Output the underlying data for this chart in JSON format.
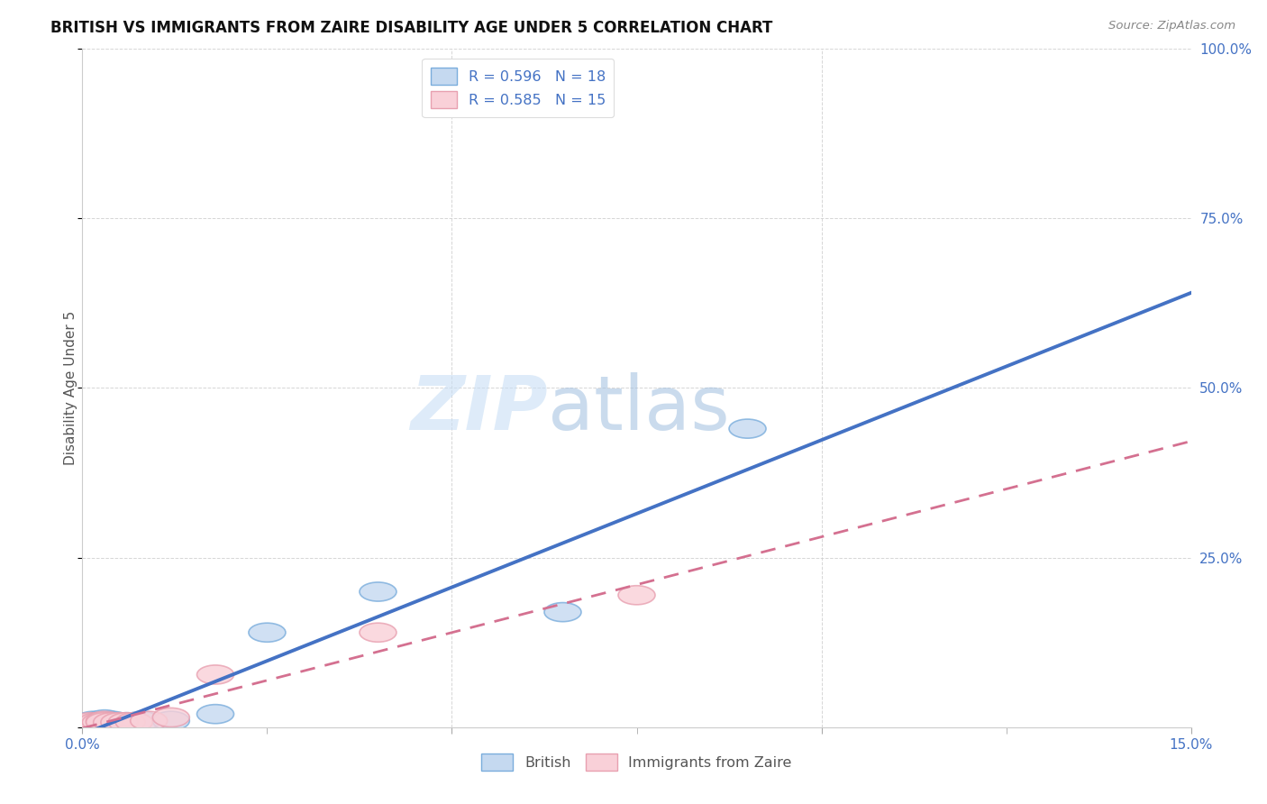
{
  "title": "BRITISH VS IMMIGRANTS FROM ZAIRE DISABILITY AGE UNDER 5 CORRELATION CHART",
  "source": "Source: ZipAtlas.com",
  "ylabel": "Disability Age Under 5",
  "bg_color": "#ffffff",
  "grid_color": "#cccccc",
  "watermark_zip": "ZIP",
  "watermark_atlas": "atlas",
  "british_color": "#c5d9f0",
  "british_edge_color": "#7aaddc",
  "british_line_color": "#4472c4",
  "zaire_color": "#f9d0d8",
  "zaire_edge_color": "#e8a0b0",
  "zaire_line_color": "#d47090",
  "axis_color": "#4472c4",
  "label_color": "#555555",
  "xlim": [
    0.0,
    0.15
  ],
  "ylim": [
    0.0,
    1.0
  ],
  "british_R": "0.596",
  "british_N": "18",
  "zaire_R": "0.585",
  "zaire_N": "15",
  "british_x": [
    0.0005,
    0.001,
    0.0015,
    0.002,
    0.0025,
    0.003,
    0.0035,
    0.004,
    0.0045,
    0.005,
    0.006,
    0.008,
    0.012,
    0.018,
    0.025,
    0.04,
    0.065,
    0.09
  ],
  "british_y": [
    0.005,
    0.008,
    0.01,
    0.005,
    0.01,
    0.012,
    0.008,
    0.01,
    0.008,
    0.008,
    0.008,
    0.01,
    0.01,
    0.02,
    0.14,
    0.2,
    0.17,
    0.44
  ],
  "zaire_x": [
    0.0005,
    0.001,
    0.002,
    0.0025,
    0.003,
    0.003,
    0.004,
    0.005,
    0.006,
    0.007,
    0.009,
    0.012,
    0.018,
    0.04,
    0.075
  ],
  "zaire_y": [
    0.005,
    0.008,
    0.008,
    0.008,
    0.01,
    0.008,
    0.008,
    0.008,
    0.008,
    0.008,
    0.01,
    0.015,
    0.078,
    0.14,
    0.195
  ]
}
